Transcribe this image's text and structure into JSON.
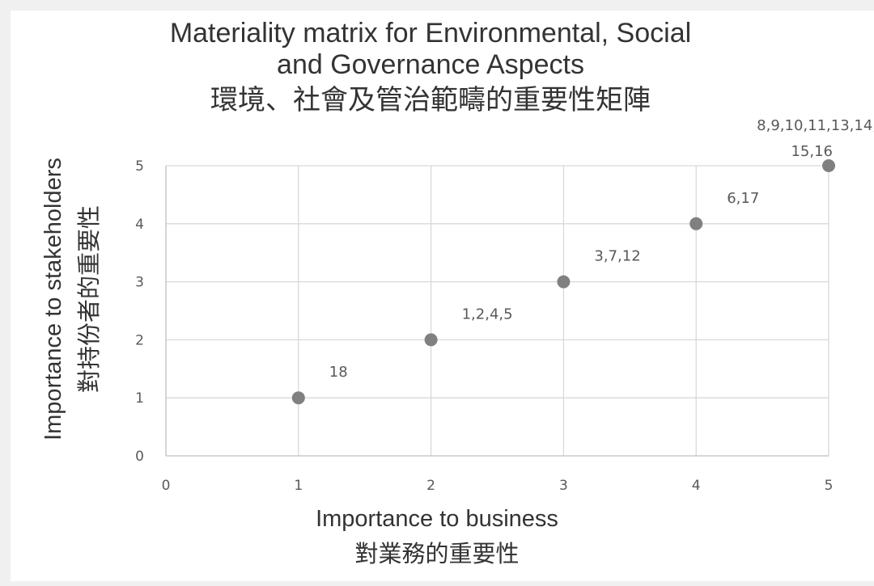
{
  "chart_data": {
    "type": "scatter",
    "title": [
      "Materiality matrix for Environmental, Social",
      "and Governance Aspects",
      "環境、社會及管治範疇的重要性矩陣"
    ],
    "xlabel": [
      "Importance to business",
      "對業務的重要性"
    ],
    "ylabel": [
      "Importance to stakeholders",
      "對持份者的重要性"
    ],
    "xlim": [
      0,
      5
    ],
    "ylim": [
      0,
      5
    ],
    "x_ticks": [
      "0",
      "1",
      "2",
      "3",
      "4",
      "5"
    ],
    "y_ticks": [
      "0",
      "1",
      "2",
      "3",
      "4",
      "5"
    ],
    "grid": true,
    "points": [
      {
        "x": 1,
        "y": 1,
        "label": [
          "18"
        ]
      },
      {
        "x": 2,
        "y": 2,
        "label": [
          "1,2,4,5"
        ]
      },
      {
        "x": 3,
        "y": 3,
        "label": [
          "3,7,12"
        ]
      },
      {
        "x": 4,
        "y": 4,
        "label": [
          "6,17"
        ]
      },
      {
        "x": 5,
        "y": 5,
        "label": [
          "8,9,10,11,13,14,",
          "15,16"
        ]
      }
    ],
    "colors": {
      "marker": "#808080",
      "grid": "#d9d9d9",
      "text": "#595959",
      "title": "#333333"
    }
  }
}
